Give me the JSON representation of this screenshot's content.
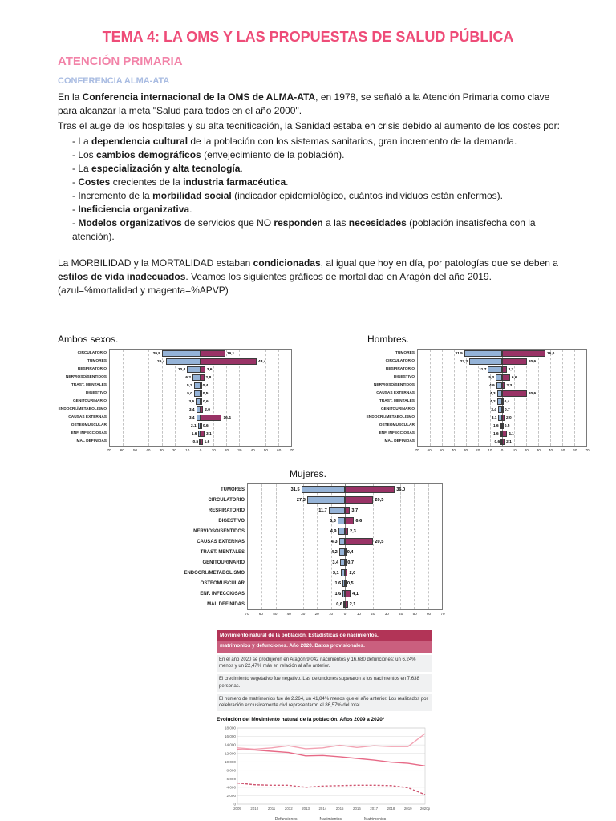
{
  "doc": {
    "title": "TEMA 4: LA OMS Y LAS PROPUESTAS DE SALUD PÚBLICA",
    "section": "ATENCIÓN PRIMARIA",
    "subsection": "CONFERENCIA ALMA-ATA"
  },
  "colors": {
    "title_pink": "#ee4c78",
    "section_pink": "#f283a8",
    "subsection_blue": "#a9bce2",
    "bar_blue": "#95b3d7",
    "bar_magenta": "#993366",
    "news_dark": "#b23457",
    "news_light": "#ca5f7e",
    "footer_blue": "#4d7ebf"
  },
  "body": {
    "blocks": [
      {
        "type": "p",
        "text": "En la **Conferencia internacional de la OMS de ALMA-ATA**, en 1978, se señaló a la Atención Primaria como clave para alcanzar la meta \"Salud para todos en el año 2000\"."
      },
      {
        "type": "p",
        "text": "Tras el auge de los hospitales y su alta tecnificación, la Sanidad estaba en crisis debido al aumento de los costes por:"
      },
      {
        "type": "bullet",
        "text": "- La **dependencia cultural** de la población con los sistemas sanitarios, gran incremento de la demanda."
      },
      {
        "type": "bullet",
        "text": "- Los **cambios demográficos** (envejecimiento de la población)."
      },
      {
        "type": "bullet",
        "text": "- La **especialización y alta tecnología**."
      },
      {
        "type": "bullet",
        "text": "- **Costes** crecientes de la **industria farmacéutica**."
      },
      {
        "type": "bullet",
        "text": "- Incremento de la **morbilidad social** (indicador epidemiológico, cuántos individuos están enfermos)."
      },
      {
        "type": "bullet",
        "text": "- **Ineficiencia organizativa**."
      },
      {
        "type": "bullet",
        "text": "- **Modelos organizativos** de servicios que NO **responden** a las **necesidades** (población insatisfecha con la atención)."
      },
      {
        "type": "spacer",
        "text": ""
      },
      {
        "type": "p",
        "text": "La MORBILIDAD y la MORTALIDAD estaban **condicionadas**, al igual que hoy en día, por patologías que se deben a **estilos de vida inadecuados**. Veamos los siguientes gráficos de mortalidad en Aragón del año 2019. (azul=%mortalidad y magenta=%APVP)"
      }
    ]
  },
  "chart_data": [
    {
      "type": "bar",
      "variant": "tornado",
      "title": "Ambos sexos.",
      "categories": [
        "CIRCULATORIO",
        "TUMORES",
        "RESPIRATORIO",
        "NERVIOSO/SENTIDOS",
        "TRAST. MENTALES",
        "DIGESTIVO",
        "GENITOURINARIO",
        "ENDOCRI./METABOLISMO",
        "CAUSAS EXTERNAS",
        "OSTEOMUSCULAR",
        "ENF. INFECCIOSAS",
        "MAL DEFINIDAS"
      ],
      "series": [
        {
          "name": "%mortalidad",
          "side": "left",
          "color": "#95b3d7",
          "values": [
            29.8,
            26.4,
            10.4,
            6.2,
            5.2,
            5.0,
            3.6,
            3.4,
            3.4,
            2.1,
            1.6,
            0.5
          ]
        },
        {
          "name": "%APVP",
          "side": "right",
          "color": "#993366",
          "values": [
            19.1,
            43.4,
            3.6,
            2.8,
            0.4,
            0.5,
            0.6,
            2.0,
            16.4,
            0.6,
            3.1,
            1.6
          ]
        }
      ],
      "xmax": 70,
      "tick_step": 10,
      "grid": true
    },
    {
      "type": "bar",
      "variant": "tornado",
      "title": "Hombres.",
      "categories": [
        "TUMORES",
        "CIRCULATORIO",
        "RESPIRATORIO",
        "DIGESTIVO",
        "NERVIOSO/SENTIDOS",
        "CAUSAS EXTERNAS",
        "TRAST. MENTALES",
        "GENITOURINARIO",
        "ENDOCRI./METABOLISMO",
        "OSTEOMUSCULAR",
        "ENF. INFECCIOSAS",
        "MAL DEFINIDAS"
      ],
      "series": [
        {
          "name": "%mortalidad",
          "side": "left",
          "color": "#95b3d7",
          "values": [
            31.5,
            27.3,
            11.7,
            5.3,
            4.9,
            4.3,
            4.2,
            3.4,
            3.1,
            1.6,
            1.6,
            0.6
          ]
        },
        {
          "name": "%APVP",
          "side": "right",
          "color": "#993366",
          "values": [
            36.0,
            20.6,
            3.7,
            6.6,
            2.3,
            20.6,
            0.4,
            0.7,
            2.0,
            0.5,
            4.1,
            2.1
          ]
        }
      ],
      "xmax": 70,
      "tick_step": 10,
      "grid": true
    },
    {
      "type": "bar",
      "variant": "tornado",
      "title": "Mujeres.",
      "categories": [
        "TUMORES",
        "CIRCULATORIO",
        "RESPIRATORIO",
        "DIGESTIVO",
        "NERVIOSO/SENTIDOS",
        "CAUSAS EXTERNAS",
        "TRAST. MENTALES",
        "GENITOURINARIO",
        "ENDOCRI./METABOLISMO",
        "OSTEOMUSCULAR",
        "ENF. INFECCIOSAS",
        "MAL DEFINIDAS"
      ],
      "series": [
        {
          "name": "%mortalidad",
          "side": "left",
          "color": "#95b3d7",
          "values": [
            31.5,
            27.3,
            11.7,
            5.3,
            4.9,
            4.3,
            4.2,
            3.4,
            3.1,
            1.6,
            1.6,
            0.6
          ]
        },
        {
          "name": "%APVP",
          "side": "right",
          "color": "#993366",
          "values": [
            36.0,
            20.5,
            3.7,
            6.6,
            2.3,
            20.5,
            0.4,
            0.7,
            2.0,
            0.5,
            4.1,
            2.1
          ]
        }
      ],
      "xmax": 70,
      "tick_step": 10,
      "grid": true
    },
    {
      "type": "line",
      "title": "Evolución del Movimiento natural de la población. Años 2009 a 2020*",
      "x_labels": [
        "2009",
        "2010",
        "2011",
        "2012",
        "2013",
        "2014",
        "2015",
        "2016",
        "2017",
        "2018",
        "2019",
        "2020p"
      ],
      "ylim": [
        0,
        18000
      ],
      "y_tick_labels": [
        "0",
        "2.000",
        "4.000",
        "6.000",
        "8.000",
        "10.000",
        "12.000",
        "14.000",
        "16.000",
        "18.000"
      ],
      "grid": true,
      "legend_position": "bottom",
      "series": [
        {
          "name": "Defunciones",
          "color": "#f2a3b3",
          "dash": false,
          "values": [
            13300,
            13000,
            13300,
            13800,
            13100,
            13300,
            13900,
            13400,
            13800,
            13600,
            13600,
            16680
          ]
        },
        {
          "name": "Nacimientos",
          "color": "#e76a87",
          "dash": false,
          "values": [
            12900,
            12800,
            12500,
            12200,
            11400,
            11500,
            11200,
            10800,
            10400,
            9900,
            9644,
            9042
          ]
        },
        {
          "name": "Matrimonios",
          "color": "#cf5570",
          "dash": true,
          "values": [
            5000,
            4600,
            4500,
            4500,
            4000,
            4300,
            4400,
            4500,
            4500,
            4400,
            3900,
            2264
          ]
        }
      ]
    }
  ],
  "news": {
    "title_line1": "Movimiento natural de la población. Estadísticas de nacimientos,",
    "title_line2": "matrimonios y defunciones. Año 2020. Datos provisionales.",
    "paragraphs": [
      "En el año 2020 se produjeron en Aragón 9.042 nacimientos y 16.680 defunciones; un 6,24% menos y un 22,47% más en relación al año anterior.",
      "El crecimiento vegetativo fue negativo. Las defunciones superaron a los nacimientos en 7.638 personas.",
      "El número de matrimonios fue de 2.264, un 41,84% menos que el año anterior. Los realizados por celebración exclusivamente civil representaron el 86,57% del total."
    ],
    "chart_title": "Evolución del Movimiento natural de la población. Años 2009 a 2020*"
  }
}
